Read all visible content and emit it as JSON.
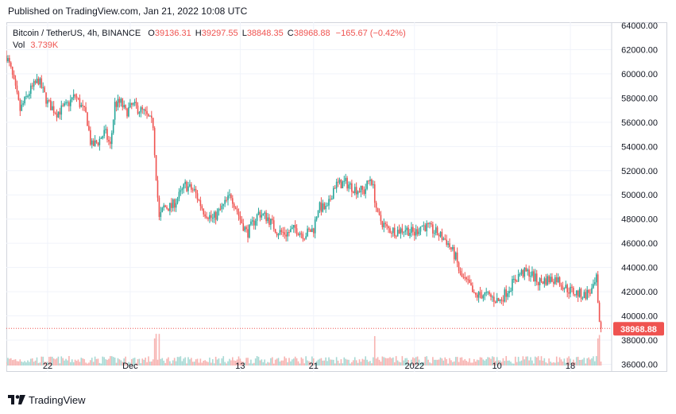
{
  "header": {
    "published": "Published on TradingView.com, Jan 21, 2022 10:08 UTC"
  },
  "legend": {
    "symbol": "Bitcoin / TetherUS, 4h, BINANCE",
    "o_label": "O",
    "o_value": "39136.31",
    "h_label": "H",
    "h_value": "39297.55",
    "l_label": "L",
    "l_value": "38848.35",
    "c_label": "C",
    "c_value": "38968.88",
    "change": "−165.67 (−0.42%)",
    "vol_label": "Vol",
    "vol_value": "3.739K"
  },
  "footer": {
    "brand": "TradingView"
  },
  "colors": {
    "up": "#26a69a",
    "down": "#ef5350",
    "up_vol": "#a7d9d4",
    "down_vol": "#f7b3b1",
    "grid": "#f0f3fa",
    "text": "#131722"
  },
  "chart_data": {
    "type": "candlestick",
    "title": "Bitcoin / TetherUS, 4h, BINANCE",
    "y_tick_labels": [
      "64000.00",
      "62000.00",
      "60000.00",
      "58000.00",
      "56000.00",
      "54000.00",
      "52000.00",
      "50000.00",
      "48000.00",
      "46000.00",
      "44000.00",
      "42000.00",
      "40000.00",
      "38000.00",
      "36000.00"
    ],
    "y_ticks": [
      64000,
      62000,
      60000,
      58000,
      56000,
      54000,
      52000,
      50000,
      48000,
      46000,
      44000,
      42000,
      40000,
      38000,
      36000
    ],
    "ylim": [
      35900,
      64000
    ],
    "x_tick_labels": [
      "22",
      "Dec",
      "13",
      "21",
      "2022",
      "10",
      "18"
    ],
    "x_ticks": [
      "2021-11-22",
      "2021-12-01",
      "2021-12-13",
      "2021-12-21",
      "2022-01-01",
      "2022-01-10",
      "2022-01-18"
    ],
    "xlim": [
      "2021-11-17T12:00",
      "2022-01-22T12:00"
    ],
    "last_price": 38968.88,
    "last_price_label": "38968.88",
    "grid": true,
    "close_path": [
      [
        "2021-11-17T12:00",
        61500
      ],
      [
        "2021-11-18T00:00",
        60300
      ],
      [
        "2021-11-19T00:00",
        57000
      ],
      [
        "2021-11-20T00:00",
        58500
      ],
      [
        "2021-11-21T00:00",
        59500
      ],
      [
        "2021-11-22T00:00",
        57600
      ],
      [
        "2021-11-23T00:00",
        56800
      ],
      [
        "2021-11-24T00:00",
        57300
      ],
      [
        "2021-11-25T00:00",
        58200
      ],
      [
        "2021-11-26T06:00",
        56500
      ],
      [
        "2021-11-26T18:00",
        54000
      ],
      [
        "2021-11-27T12:00",
        54400
      ],
      [
        "2021-11-28T06:00",
        55200
      ],
      [
        "2021-11-28T20:00",
        54000
      ],
      [
        "2021-11-29T08:00",
        57500
      ],
      [
        "2021-11-30T00:00",
        57600
      ],
      [
        "2021-11-30T12:00",
        56800
      ],
      [
        "2021-12-01T06:00",
        57400
      ],
      [
        "2021-12-02T12:00",
        56800
      ],
      [
        "2021-12-03T12:00",
        55800
      ],
      [
        "2021-12-03T18:00",
        52500
      ],
      [
        "2021-12-04T04:00",
        48000
      ],
      [
        "2021-12-04T16:00",
        49000
      ],
      [
        "2021-12-05T12:00",
        49000
      ],
      [
        "2021-12-06T12:00",
        50100
      ],
      [
        "2021-12-07T00:00",
        50800
      ],
      [
        "2021-12-08T00:00",
        50300
      ],
      [
        "2021-12-09T00:00",
        48700
      ],
      [
        "2021-12-10T00:00",
        48000
      ],
      [
        "2021-12-11T00:00",
        48900
      ],
      [
        "2021-12-12T00:00",
        50000
      ],
      [
        "2021-12-13T00:00",
        48000
      ],
      [
        "2021-12-13T18:00",
        46800
      ],
      [
        "2021-12-15T00:00",
        48500
      ],
      [
        "2021-12-16T00:00",
        48100
      ],
      [
        "2021-12-17T00:00",
        47000
      ],
      [
        "2021-12-18T00:00",
        46800
      ],
      [
        "2021-12-19T00:00",
        47200
      ],
      [
        "2021-12-20T00:00",
        46700
      ],
      [
        "2021-12-21T00:00",
        47200
      ],
      [
        "2021-12-21T12:00",
        49000
      ],
      [
        "2021-12-22T12:00",
        48800
      ],
      [
        "2021-12-23T06:00",
        50800
      ],
      [
        "2021-12-24T12:00",
        51000
      ],
      [
        "2021-12-25T12:00",
        50500
      ],
      [
        "2021-12-26T12:00",
        50300
      ],
      [
        "2021-12-27T06:00",
        51500
      ],
      [
        "2021-12-27T12:00",
        50500
      ],
      [
        "2021-12-28T00:00",
        48200
      ],
      [
        "2021-12-29T00:00",
        47200
      ],
      [
        "2021-12-30T00:00",
        47000
      ],
      [
        "2021-12-31T00:00",
        47200
      ],
      [
        "2022-01-01T00:00",
        46800
      ],
      [
        "2022-01-01T18:00",
        47500
      ],
      [
        "2022-01-02T12:00",
        47300
      ],
      [
        "2022-01-03T12:00",
        46800
      ],
      [
        "2022-01-04T12:00",
        46200
      ],
      [
        "2022-01-05T12:00",
        44800
      ],
      [
        "2022-01-06T00:00",
        43300
      ],
      [
        "2022-01-07T00:00",
        42500
      ],
      [
        "2022-01-07T12:00",
        41600
      ],
      [
        "2022-01-08T12:00",
        41800
      ],
      [
        "2022-01-09T12:00",
        41500
      ],
      [
        "2022-01-10T06:00",
        41200
      ],
      [
        "2022-01-11T12:00",
        42500
      ],
      [
        "2022-01-12T12:00",
        43500
      ],
      [
        "2022-01-13T12:00",
        43600
      ],
      [
        "2022-01-14T12:00",
        42800
      ],
      [
        "2022-01-15T12:00",
        43000
      ],
      [
        "2022-01-16T12:00",
        43100
      ],
      [
        "2022-01-17T12:00",
        42300
      ],
      [
        "2022-01-18T12:00",
        41900
      ],
      [
        "2022-01-19T12:00",
        41700
      ],
      [
        "2022-01-20T12:00",
        42200
      ],
      [
        "2022-01-20T20:00",
        43000
      ],
      [
        "2022-01-21T00:00",
        40800
      ],
      [
        "2022-01-21T04:00",
        39100
      ],
      [
        "2022-01-21T08:00",
        38968.88
      ]
    ]
  }
}
